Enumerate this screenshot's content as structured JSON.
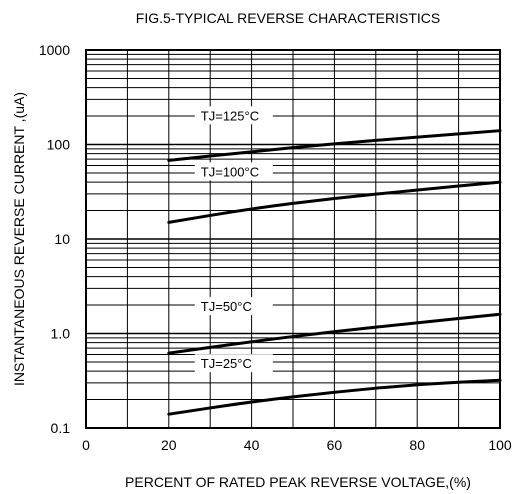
{
  "chart_data": {
    "type": "line",
    "title": "FIG.5-TYPICAL REVERSE CHARACTERISTICS",
    "xlabel": "PERCENT OF RATED PEAK REVERSE VOLTAGE,(%)",
    "ylabel": "INSTANTANEOUS  REVERSE  CURRENT ,(uA)",
    "xlim": [
      0,
      100
    ],
    "ylim": [
      0.1,
      1000
    ],
    "y_scale": "log",
    "x_ticks": [
      0,
      20,
      40,
      60,
      80,
      100
    ],
    "x_tick_labels": [
      "0",
      "20",
      "40",
      "60",
      "80",
      "100"
    ],
    "y_ticks": [
      0.1,
      1,
      10,
      100,
      1000
    ],
    "y_tick_labels": [
      "0.1",
      "1.0",
      "10",
      "100",
      "1000"
    ],
    "grid": true,
    "series": [
      {
        "name": "TJ=125°C",
        "x": [
          20,
          40,
          60,
          80,
          100
        ],
        "y": [
          68,
          84,
          102,
          120,
          140
        ]
      },
      {
        "name": "TJ=100°C",
        "x": [
          20,
          40,
          60,
          80,
          100
        ],
        "y": [
          15,
          21,
          27,
          33,
          40
        ]
      },
      {
        "name": "TJ=50°C",
        "x": [
          20,
          40,
          60,
          80,
          100
        ],
        "y": [
          0.62,
          0.82,
          1.05,
          1.3,
          1.6
        ]
      },
      {
        "name": "TJ=25°C",
        "x": [
          20,
          40,
          60,
          80,
          100
        ],
        "y": [
          0.14,
          0.19,
          0.24,
          0.29,
          0.32
        ]
      }
    ]
  }
}
